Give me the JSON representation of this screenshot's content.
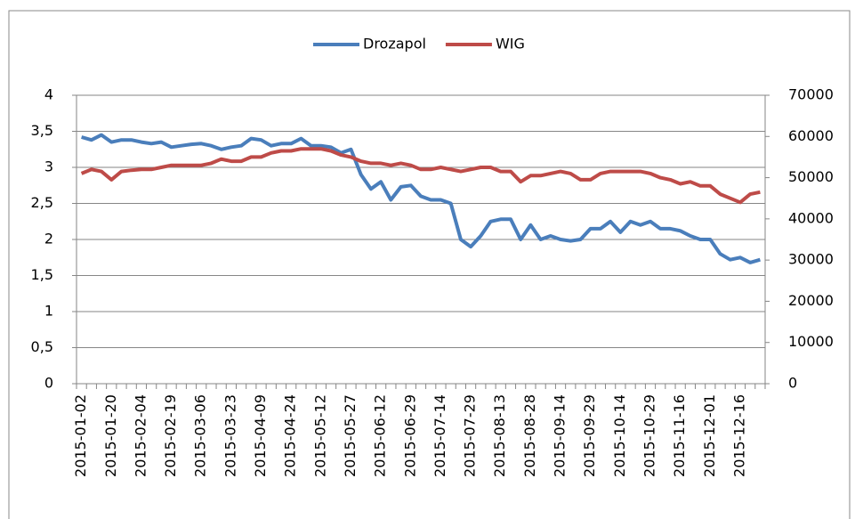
{
  "chart_data": {
    "type": "line",
    "categories": [
      "2015-01-02",
      null,
      null,
      "2015-01-20",
      null,
      null,
      "2015-02-04",
      null,
      null,
      "2015-02-19",
      null,
      null,
      "2015-03-06",
      null,
      null,
      "2015-03-23",
      null,
      null,
      "2015-04-09",
      null,
      null,
      "2015-04-24",
      null,
      null,
      "2015-05-12",
      null,
      null,
      "2015-05-27",
      null,
      null,
      "2015-06-12",
      null,
      null,
      "2015-06-29",
      null,
      null,
      "2015-07-14",
      null,
      null,
      "2015-07-29",
      null,
      null,
      "2015-08-13",
      null,
      null,
      "2015-08-28",
      null,
      null,
      "2015-09-14",
      null,
      null,
      "2015-09-29",
      null,
      null,
      "2015-10-14",
      null,
      null,
      "2015-10-29",
      null,
      null,
      "2015-11-16",
      null,
      null,
      "2015-12-01",
      null,
      null,
      "2015-12-16",
      null,
      null
    ],
    "series": [
      {
        "name": "Drozapol",
        "color": "#4a7ebb",
        "values": [
          3.42,
          3.38,
          3.45,
          3.35,
          3.38,
          3.38,
          3.35,
          3.33,
          3.35,
          3.28,
          3.3,
          3.32,
          3.33,
          3.3,
          3.25,
          3.28,
          3.3,
          3.4,
          3.38,
          3.3,
          3.33,
          3.33,
          3.4,
          3.3,
          3.3,
          3.28,
          3.2,
          3.25,
          2.9,
          2.7,
          2.8,
          2.55,
          2.73,
          2.75,
          2.6,
          2.55,
          2.55,
          2.5,
          2.0,
          1.9,
          2.05,
          2.25,
          2.28,
          2.28,
          2.0,
          2.2,
          2.0,
          2.05,
          2.0,
          1.98,
          2.0,
          2.15,
          2.15,
          2.25,
          2.1,
          2.25,
          2.2,
          2.25,
          2.15,
          2.15,
          2.12,
          2.05,
          2.0,
          2.0,
          1.8,
          1.72,
          1.75,
          1.68,
          1.72
        ]
      },
      {
        "name": "WIG",
        "color": "#be4b48",
        "axis": "y2",
        "values": [
          51000,
          52000,
          51500,
          49500,
          51500,
          51800,
          52000,
          52000,
          52500,
          53000,
          53000,
          53000,
          53000,
          53500,
          54500,
          54000,
          54000,
          55000,
          55000,
          56000,
          56500,
          56500,
          57000,
          57000,
          57000,
          56500,
          55500,
          55000,
          54000,
          53500,
          53500,
          53000,
          53500,
          53000,
          52000,
          52000,
          52500,
          52000,
          51500,
          52000,
          52500,
          52500,
          51500,
          51500,
          49000,
          50500,
          50500,
          51000,
          51500,
          51000,
          49500,
          49500,
          51000,
          51500,
          51500,
          51500,
          51500,
          51000,
          50000,
          49500,
          48500,
          49000,
          48000,
          48000,
          46000,
          45000,
          44000,
          46000,
          46500
        ]
      }
    ],
    "ylim": [
      0,
      4
    ],
    "yticks": [
      0,
      {
        "value": 0.5,
        "label": "0,5"
      },
      1,
      {
        "value": 1.5,
        "label": "1,5"
      },
      2,
      {
        "value": 2.5,
        "label": "2,5"
      },
      3,
      {
        "value": 3.5,
        "label": "3,5"
      },
      4
    ],
    "y2lim": [
      0,
      70000
    ],
    "y2ticks": [
      0,
      10000,
      20000,
      30000,
      40000,
      50000,
      60000,
      70000
    ],
    "grid": true,
    "legend": "top"
  }
}
